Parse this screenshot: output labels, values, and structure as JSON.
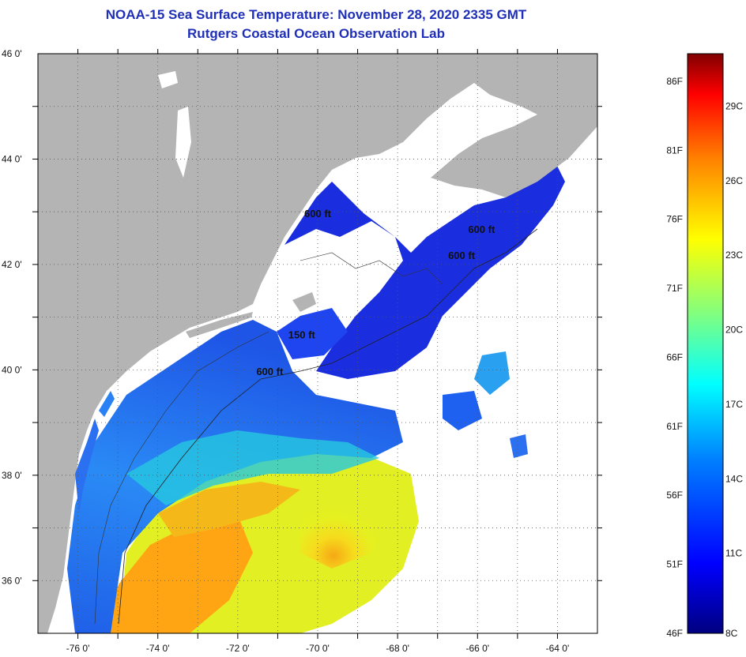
{
  "title": "NOAA-15 Sea Surface Temperature:  November 28, 2020 2335 GMT",
  "subtitle": "Rutgers Coastal Ocean Observation Lab",
  "map": {
    "lon_range": [
      -77,
      -63
    ],
    "lat_range": [
      35,
      46
    ],
    "lon_ticks": [
      "-76 0'",
      "-74 0'",
      "-72 0'",
      "-70 0'",
      "-68 0'",
      "-66 0'",
      "-64 0'"
    ],
    "lat_ticks": [
      "46 0'",
      "44 0'",
      "42 0'",
      "40 0'",
      "38 0'",
      "36 0'"
    ],
    "land_color": "#b4b4b4",
    "cloud_color": "#ffffff",
    "grid": "dotted"
  },
  "contour_labels": [
    {
      "text": "600 ft",
      "lon": -71.2,
      "lat": 39.9
    },
    {
      "text": "150 ft",
      "lon": -70.4,
      "lat": 40.6
    },
    {
      "text": "600 ft",
      "lon": -70.0,
      "lat": 42.9
    },
    {
      "text": "600 ft",
      "lon": -65.9,
      "lat": 42.6
    },
    {
      "text": "600 ft",
      "lon": -66.4,
      "lat": 42.1
    }
  ],
  "colorbar": {
    "fahrenheit": [
      "86F",
      "81F",
      "76F",
      "71F",
      "66F",
      "61F",
      "56F",
      "51F",
      "46F"
    ],
    "celsius": [
      "29C",
      "26C",
      "23C",
      "20C",
      "17C",
      "14C",
      "11C",
      "8C"
    ],
    "colors": [
      "#800000",
      "#ff0000",
      "#ff8000",
      "#ffff00",
      "#80ff80",
      "#00ffff",
      "#0080ff",
      "#0000ff",
      "#000080"
    ]
  }
}
